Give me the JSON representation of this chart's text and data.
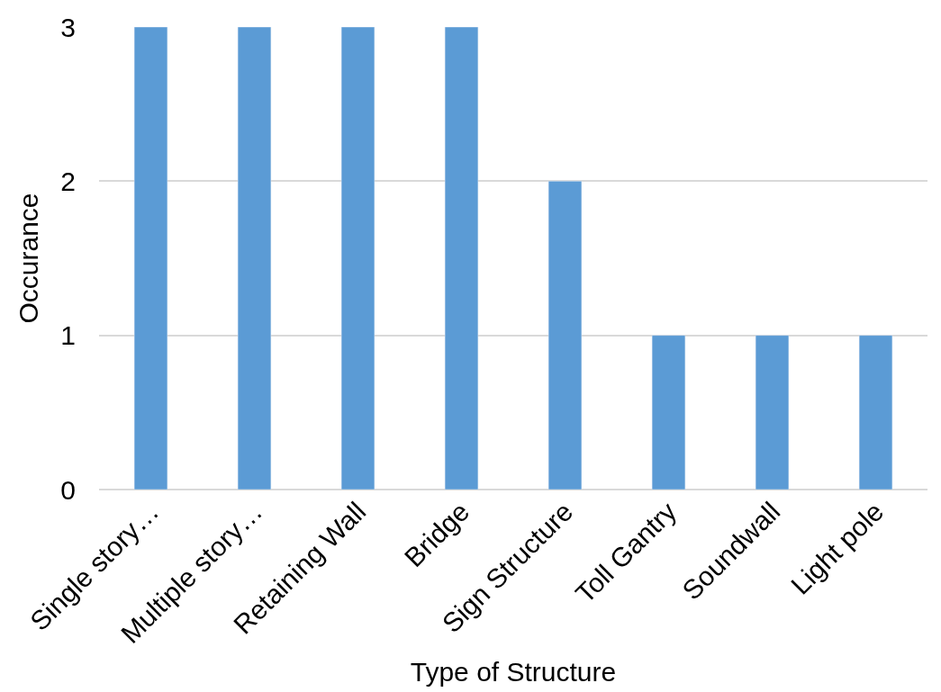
{
  "chart_data": {
    "type": "bar",
    "xlabel": "Type of Structure",
    "ylabel": "Occurance",
    "categories": [
      "Single story…",
      "Multiple story…",
      "Retaining Wall",
      "Bridge",
      "Sign Structure",
      "Toll Gantry",
      "Soundwall",
      "Light pole"
    ],
    "values": [
      3,
      3,
      3,
      3,
      2,
      1,
      1,
      1
    ],
    "color": "#5b9bd5",
    "ylim": [
      0,
      3
    ],
    "yticks": [
      0,
      1,
      2,
      3
    ],
    "grid": "y"
  }
}
